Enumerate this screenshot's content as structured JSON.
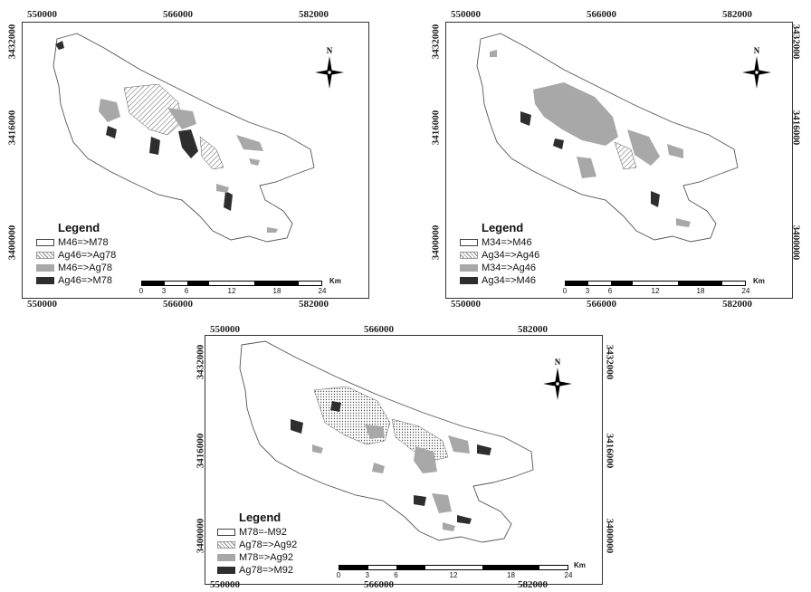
{
  "panels": [
    {
      "id": "panel-1",
      "top_coords": [
        "550000",
        "566000",
        "582000"
      ],
      "bottom_coords": [
        "550000",
        "566000",
        "582000"
      ],
      "left_coords": [
        "3432000",
        "3416000",
        "3400000"
      ],
      "legend": {
        "title": "Legend",
        "items": [
          {
            "label": "M46=>M78",
            "style": "open"
          },
          {
            "label": "Ag46=>Ag78",
            "style": "hatch"
          },
          {
            "label": "M46=>Ag78",
            "style": "grey"
          },
          {
            "label": "Ag46=>M78",
            "style": "dark"
          }
        ]
      },
      "north_label": "N",
      "scale": {
        "unit": "Km",
        "ticks": [
          "0",
          "3",
          "6",
          "12",
          "18",
          "24"
        ]
      }
    },
    {
      "id": "panel-2",
      "top_coords": [
        "550000",
        "566000",
        "582000"
      ],
      "bottom_coords": [
        "550000",
        "566000",
        "582000"
      ],
      "left_coords": [
        "3432000",
        "3416000",
        "3400000"
      ],
      "right_coords": [
        "3432000",
        "3416000",
        "3400000"
      ],
      "legend": {
        "title": "Legend",
        "items": [
          {
            "label": "M34=>M46",
            "style": "open"
          },
          {
            "label": "Ag34=>Ag46",
            "style": "hatch"
          },
          {
            "label": "M34=>Ag46",
            "style": "grey"
          },
          {
            "label": "Ag34=>M46",
            "style": "dark"
          }
        ]
      },
      "north_label": "N",
      "scale": {
        "unit": "Km",
        "ticks": [
          "0",
          "3",
          "6",
          "12",
          "18",
          "24"
        ]
      }
    },
    {
      "id": "panel-3",
      "top_coords": [
        "550000",
        "566000",
        "582000"
      ],
      "bottom_coords": [
        "550000",
        "566000",
        "582000"
      ],
      "left_coords": [
        "3432000",
        "3416000",
        "3400000"
      ],
      "right_coords": [
        "3432000",
        "3416000",
        "3400000"
      ],
      "legend": {
        "title": "Legend",
        "items": [
          {
            "label": "M78=-M92",
            "style": "open"
          },
          {
            "label": "Ag78=>Ag92",
            "style": "hatch"
          },
          {
            "label": "M78=>Ag92",
            "style": "grey"
          },
          {
            "label": "Ag78=>M92",
            "style": "dark"
          }
        ]
      },
      "north_label": "N",
      "scale": {
        "unit": "Km",
        "ticks": [
          "0",
          "3",
          "6",
          "12",
          "18",
          "24"
        ]
      }
    }
  ],
  "colors": {
    "open": "#ffffff",
    "hatch": "#888888",
    "grey": "#a8a8a8",
    "dark": "#2e2e2e"
  }
}
